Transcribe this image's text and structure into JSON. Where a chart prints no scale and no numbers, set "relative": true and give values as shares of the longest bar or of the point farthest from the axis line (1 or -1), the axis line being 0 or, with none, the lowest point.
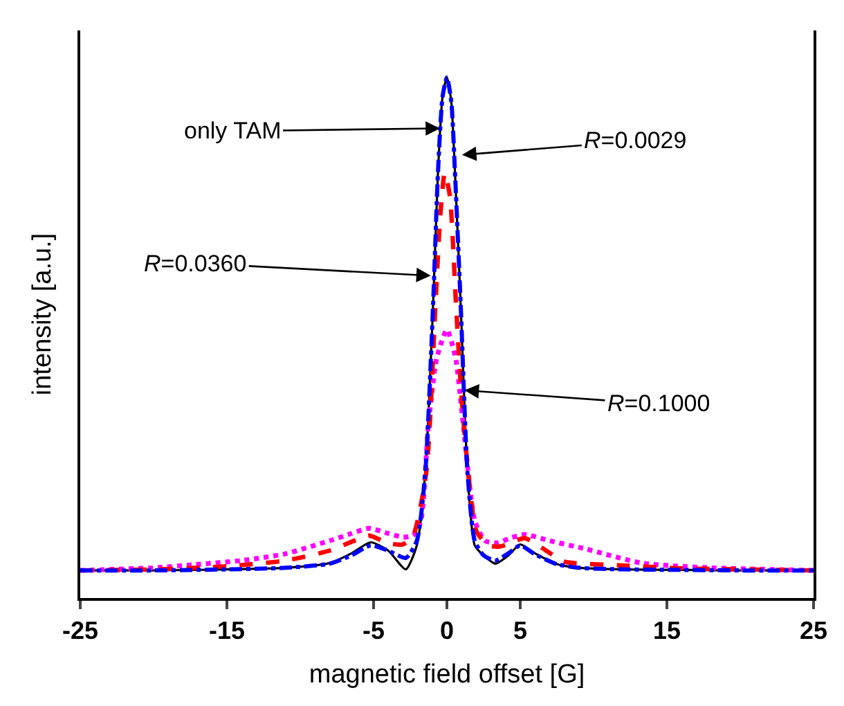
{
  "chart_data": {
    "type": "line",
    "relative": true,
    "xlabel": "magnetic field offset [G]",
    "ylabel": "intensity [a.u.]",
    "xlim": [
      -25,
      25
    ],
    "xticks": [
      -25,
      -15,
      -5,
      0,
      5,
      15,
      25
    ],
    "marker": "none",
    "series": [
      {
        "color": "#000000",
        "line_style": "solid",
        "x": [
          -25,
          -20,
          -15,
          -11,
          -8,
          -6.5,
          -5.2,
          -4,
          -2.8,
          -2.05,
          -1.47,
          -0.94,
          -0.62,
          -0.3,
          0,
          0.3,
          0.56,
          0.94,
          1.4,
          1.9,
          2.5,
          3.3,
          4.2,
          5.0,
          6,
          7.5,
          9,
          12,
          16,
          20,
          25
        ],
        "values": [
          0.053,
          0.053,
          0.055,
          0.058,
          0.067,
          0.086,
          0.107,
          0.091,
          0.055,
          0.101,
          0.243,
          0.564,
          0.811,
          0.962,
          1.0,
          0.953,
          0.811,
          0.564,
          0.243,
          0.101,
          0.082,
          0.066,
          0.082,
          0.103,
          0.086,
          0.065,
          0.058,
          0.055,
          0.054,
          0.053,
          0.053
        ]
      },
      {
        "color": "#ff00ff",
        "line_style": "dotted",
        "x": [
          -25,
          -20,
          -17.3,
          -14,
          -11,
          -8,
          -6.5,
          -5.3,
          -4,
          -3,
          -2.3,
          -1.78,
          -1.25,
          -0.7,
          0,
          0.6,
          1.1,
          1.9,
          2.6,
          3.5,
          4.3,
          5.3,
          7,
          9.5,
          13.3,
          18,
          22,
          25
        ],
        "values": [
          0.053,
          0.058,
          0.064,
          0.072,
          0.085,
          0.11,
          0.124,
          0.134,
          0.124,
          0.117,
          0.12,
          0.148,
          0.337,
          0.46,
          0.515,
          0.46,
          0.337,
          0.148,
          0.11,
          0.106,
          0.115,
          0.122,
          0.11,
          0.094,
          0.067,
          0.058,
          0.055,
          0.053
        ]
      },
      {
        "color": "#ff0000",
        "line_style": "dashed",
        "x": [
          -25,
          -20,
          -15,
          -11,
          -8,
          -6.5,
          -5.3,
          -4,
          -3,
          -2.3,
          -1.4,
          -0.78,
          -0.45,
          -0.15,
          0.2,
          0.62,
          1.0,
          1.45,
          2.0,
          2.8,
          3.6,
          4.3,
          5.3,
          6.5,
          8,
          11.7,
          16,
          20,
          25
        ],
        "values": [
          0.053,
          0.055,
          0.061,
          0.072,
          0.091,
          0.108,
          0.12,
          0.105,
          0.103,
          0.12,
          0.243,
          0.564,
          0.735,
          0.816,
          0.773,
          0.564,
          0.385,
          0.243,
          0.129,
          0.101,
          0.099,
          0.105,
          0.115,
          0.096,
          0.07,
          0.063,
          0.057,
          0.055,
          0.053
        ]
      },
      {
        "color": "#0000ff",
        "line_style": "dashdot",
        "x": [
          -25,
          -20,
          -15,
          -11,
          -8,
          -6.5,
          -5.2,
          -4,
          -2.8,
          -2.05,
          -1.47,
          -0.94,
          -0.62,
          -0.3,
          0,
          0.3,
          0.56,
          0.94,
          1.4,
          1.9,
          2.5,
          3.3,
          4.2,
          5.0,
          6,
          7.5,
          9,
          12,
          16,
          20,
          25
        ],
        "values": [
          0.053,
          0.053,
          0.055,
          0.058,
          0.066,
          0.082,
          0.101,
          0.091,
          0.077,
          0.11,
          0.243,
          0.564,
          0.811,
          0.962,
          1.0,
          0.953,
          0.811,
          0.564,
          0.243,
          0.11,
          0.082,
          0.072,
          0.086,
          0.101,
          0.084,
          0.065,
          0.058,
          0.055,
          0.054,
          0.053,
          0.053
        ]
      }
    ],
    "annotations": [
      {
        "text": "only TAM",
        "x": -0.47,
        "y": 0.902
      },
      {
        "text": "R=0.0029",
        "x": 1.03,
        "y": 0.851
      },
      {
        "text": "R=0.0360",
        "x": -1.1,
        "y": 0.619
      },
      {
        "text": "R=0.1000",
        "x": 1.2,
        "y": 0.399
      }
    ]
  }
}
